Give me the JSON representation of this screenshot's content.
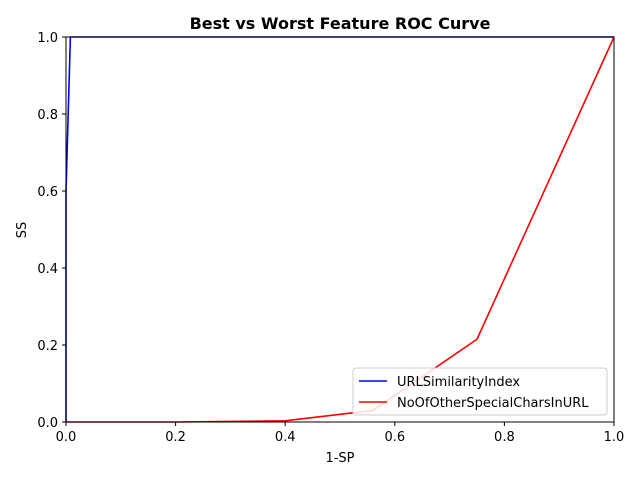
{
  "chart_data": {
    "type": "line",
    "title": "Best vs Worst Feature ROC Curve",
    "xlabel": "1-SP",
    "ylabel": "SS",
    "xlim": [
      0,
      1
    ],
    "ylim": [
      0,
      1
    ],
    "xticks": [
      "0.0",
      "0.2",
      "0.4",
      "0.6",
      "0.8",
      "1.0"
    ],
    "yticks": [
      "0.0",
      "0.2",
      "0.4",
      "0.6",
      "0.8",
      "1.0"
    ],
    "grid": false,
    "legend_position": "lower-right",
    "series": [
      {
        "name": "URLSimilarityIndex",
        "color": "#0000ff",
        "x": [
          0.0,
          0.0,
          0.008,
          1.0
        ],
        "y": [
          0.0,
          0.6,
          1.0,
          1.0
        ]
      },
      {
        "name": "NoOfOtherSpecialCharsInURL",
        "color": "#ff0000",
        "x": [
          0.0,
          0.2,
          0.4,
          0.56,
          0.75,
          1.0
        ],
        "y": [
          0.0,
          0.0,
          0.003,
          0.03,
          0.215,
          1.0
        ]
      }
    ]
  }
}
